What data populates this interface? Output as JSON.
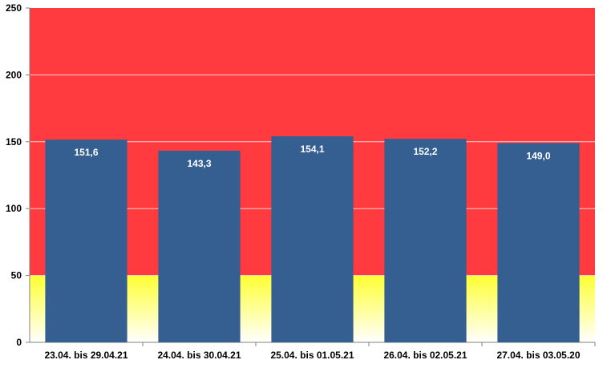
{
  "chart_data": {
    "type": "bar",
    "title": "",
    "xlabel": "",
    "ylabel": "",
    "categories": [
      "23.04. bis 29.04.21",
      "24.04. bis 30.04.21",
      "25.04. bis 01.05.21",
      "26.04. bis 02.05.21",
      "27.04. bis 03.05.20"
    ],
    "values": [
      151.6,
      143.3,
      154.1,
      152.2,
      149.0
    ],
    "data_labels": [
      "151,6",
      "143,3",
      "154,1",
      "152,2",
      "149,0"
    ],
    "ylim": [
      0,
      250
    ],
    "yticks": [
      0,
      50,
      100,
      150,
      200,
      250
    ],
    "grid": true,
    "legend": "none",
    "background_bands": [
      {
        "from": 0,
        "to": 50,
        "color_bottom": "#ffffff",
        "color_top": "#ffff33"
      },
      {
        "from": 50,
        "to": 250,
        "color": "#ff3b3f"
      }
    ],
    "bar_color": "#355f91"
  }
}
